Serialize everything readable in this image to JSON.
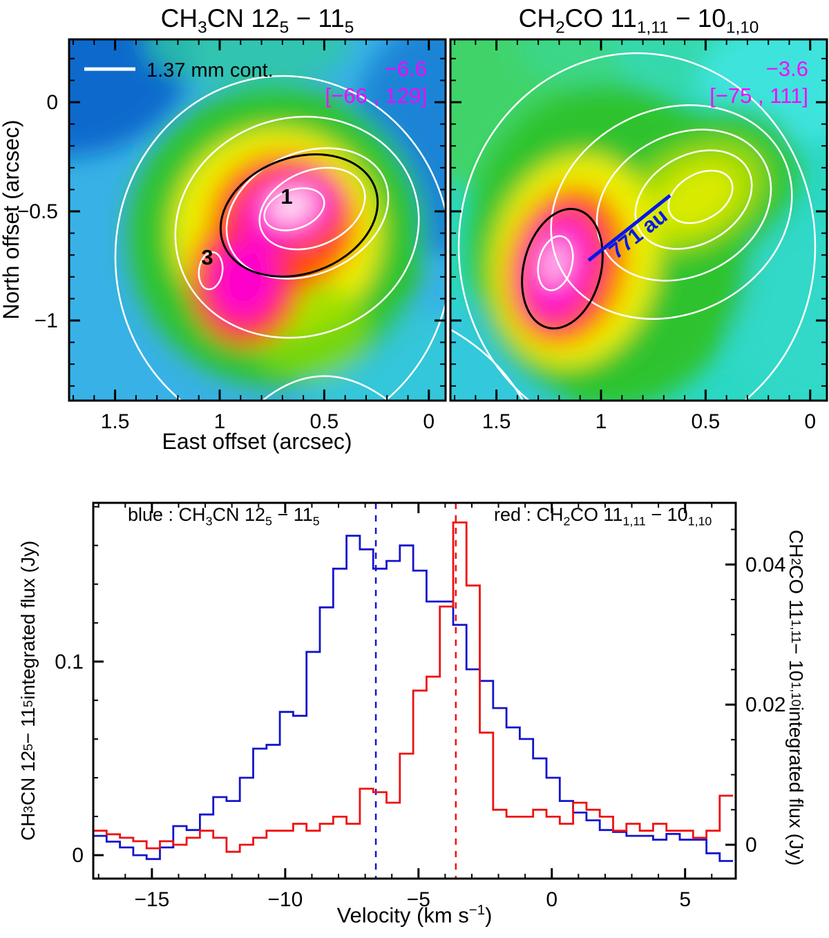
{
  "maps": {
    "left": {
      "title": "CH~3~CN 12~5~ − 11~5~",
      "legend_label": "1.37 mm cont.",
      "peak_velocity": "−6.6",
      "velocity_range": "[−66 , 129]",
      "source1_label": "1",
      "source3_label": "3"
    },
    "right": {
      "title": "CH~2~CO 11~1,11~ − 10~1,10~",
      "peak_velocity": "−3.6",
      "velocity_range": "[−75 , 111]",
      "scale_label": "771 au"
    },
    "x_label": "East offset (arcsec)",
    "y_label": "North offset (arcsec)",
    "x_ticks": [
      {
        "v": 1.5,
        "l": "1.5"
      },
      {
        "v": 1.0,
        "l": "1"
      },
      {
        "v": 0.5,
        "l": "0.5"
      },
      {
        "v": 0.0,
        "l": "0"
      }
    ],
    "y_ticks": [
      {
        "v": 0,
        "l": "0"
      },
      {
        "v": -0.5,
        "l": "−0.5"
      },
      {
        "v": -1.0,
        "l": "−1"
      }
    ],
    "annotation_color": "#ff00ff",
    "contour_color": "#ffffff",
    "scale_bar_color": "#0018e8"
  },
  "chart_data": {
    "type": "line",
    "style": "step-histogram",
    "xlabel": "Velocity (km s^−1^)",
    "xlim": [
      -17.2,
      6.9
    ],
    "x_ticks": [
      {
        "v": -15,
        "l": "−15"
      },
      {
        "v": -10,
        "l": "−10"
      },
      {
        "v": -5,
        "l": "−5"
      },
      {
        "v": 0,
        "l": "0"
      },
      {
        "v": 5,
        "l": "5"
      }
    ],
    "x_minor_step": 1,
    "left_axis": {
      "label": "CH~3~CN 12~5~ − 11~5~  integrated flux  (Jy)",
      "lim": [
        -0.0121,
        0.182
      ],
      "ticks": [
        {
          "v": 0,
          "l": "0"
        },
        {
          "v": 0.1,
          "l": "0.1"
        }
      ],
      "minor_step": 0.02
    },
    "right_axis": {
      "label": "CH~2~CO 11~1,11~ − 10~1,10~  integrated flux  (Jy)",
      "lim": [
        -0.00483,
        0.0488
      ],
      "ticks": [
        {
          "v": 0,
          "l": "0"
        },
        {
          "v": 0.02,
          "l": "0.02"
        },
        {
          "v": 0.04,
          "l": "0.04"
        }
      ],
      "minor_step": 0.005
    },
    "legend": {
      "blue": "blue : CH~3~CN 12~5~ − 11~5~",
      "red": "red : CH~2~CO 11~1,11~ − 10~1,10~"
    },
    "vlines": [
      {
        "x": -6.6,
        "color": "#1414cc"
      },
      {
        "x": -3.6,
        "color": "#ee1111"
      }
    ],
    "series": [
      {
        "name": "CH3CN 12(5)-11(5)",
        "color": "#1414cc",
        "axis": "left",
        "x_start": -17.2,
        "bin_width": 0.5,
        "values": [
          0.01,
          0.007,
          0.004,
          0.0,
          -0.002,
          0.004,
          0.015,
          0.013,
          0.021,
          0.03,
          0.028,
          0.04,
          0.055,
          0.057,
          0.074,
          0.072,
          0.105,
          0.128,
          0.148,
          0.165,
          0.158,
          0.148,
          0.152,
          0.16,
          0.147,
          0.131,
          0.131,
          0.119,
          0.096,
          0.09,
          0.076,
          0.066,
          0.06,
          0.05,
          0.04,
          0.028,
          0.022,
          0.018,
          0.013,
          0.012,
          0.01,
          0.01,
          0.008,
          0.011,
          0.008,
          0.008,
          0.001,
          -0.003
        ]
      },
      {
        "name": "CH2CO 11(1,11)-10(1,10)",
        "color": "#ee1111",
        "axis": "right",
        "x_start": -17.2,
        "bin_width": 0.5,
        "values": [
          0.002,
          0.0015,
          0.001,
          0.0005,
          -0.0005,
          0.0005,
          0.0,
          0.001,
          0.002,
          0.001,
          -0.001,
          0.0,
          0.001,
          0.002,
          0.002,
          0.003,
          0.002,
          0.003,
          0.004,
          0.003,
          0.008,
          0.0075,
          0.006,
          0.013,
          0.022,
          0.024,
          0.034,
          0.046,
          0.037,
          0.016,
          0.005,
          0.004,
          0.004,
          0.005,
          0.004,
          0.003,
          0.006,
          0.005,
          0.004,
          0.002,
          0.003,
          0.002,
          0.003,
          0.002,
          0.002,
          0.001,
          0.002,
          0.007
        ]
      }
    ]
  }
}
